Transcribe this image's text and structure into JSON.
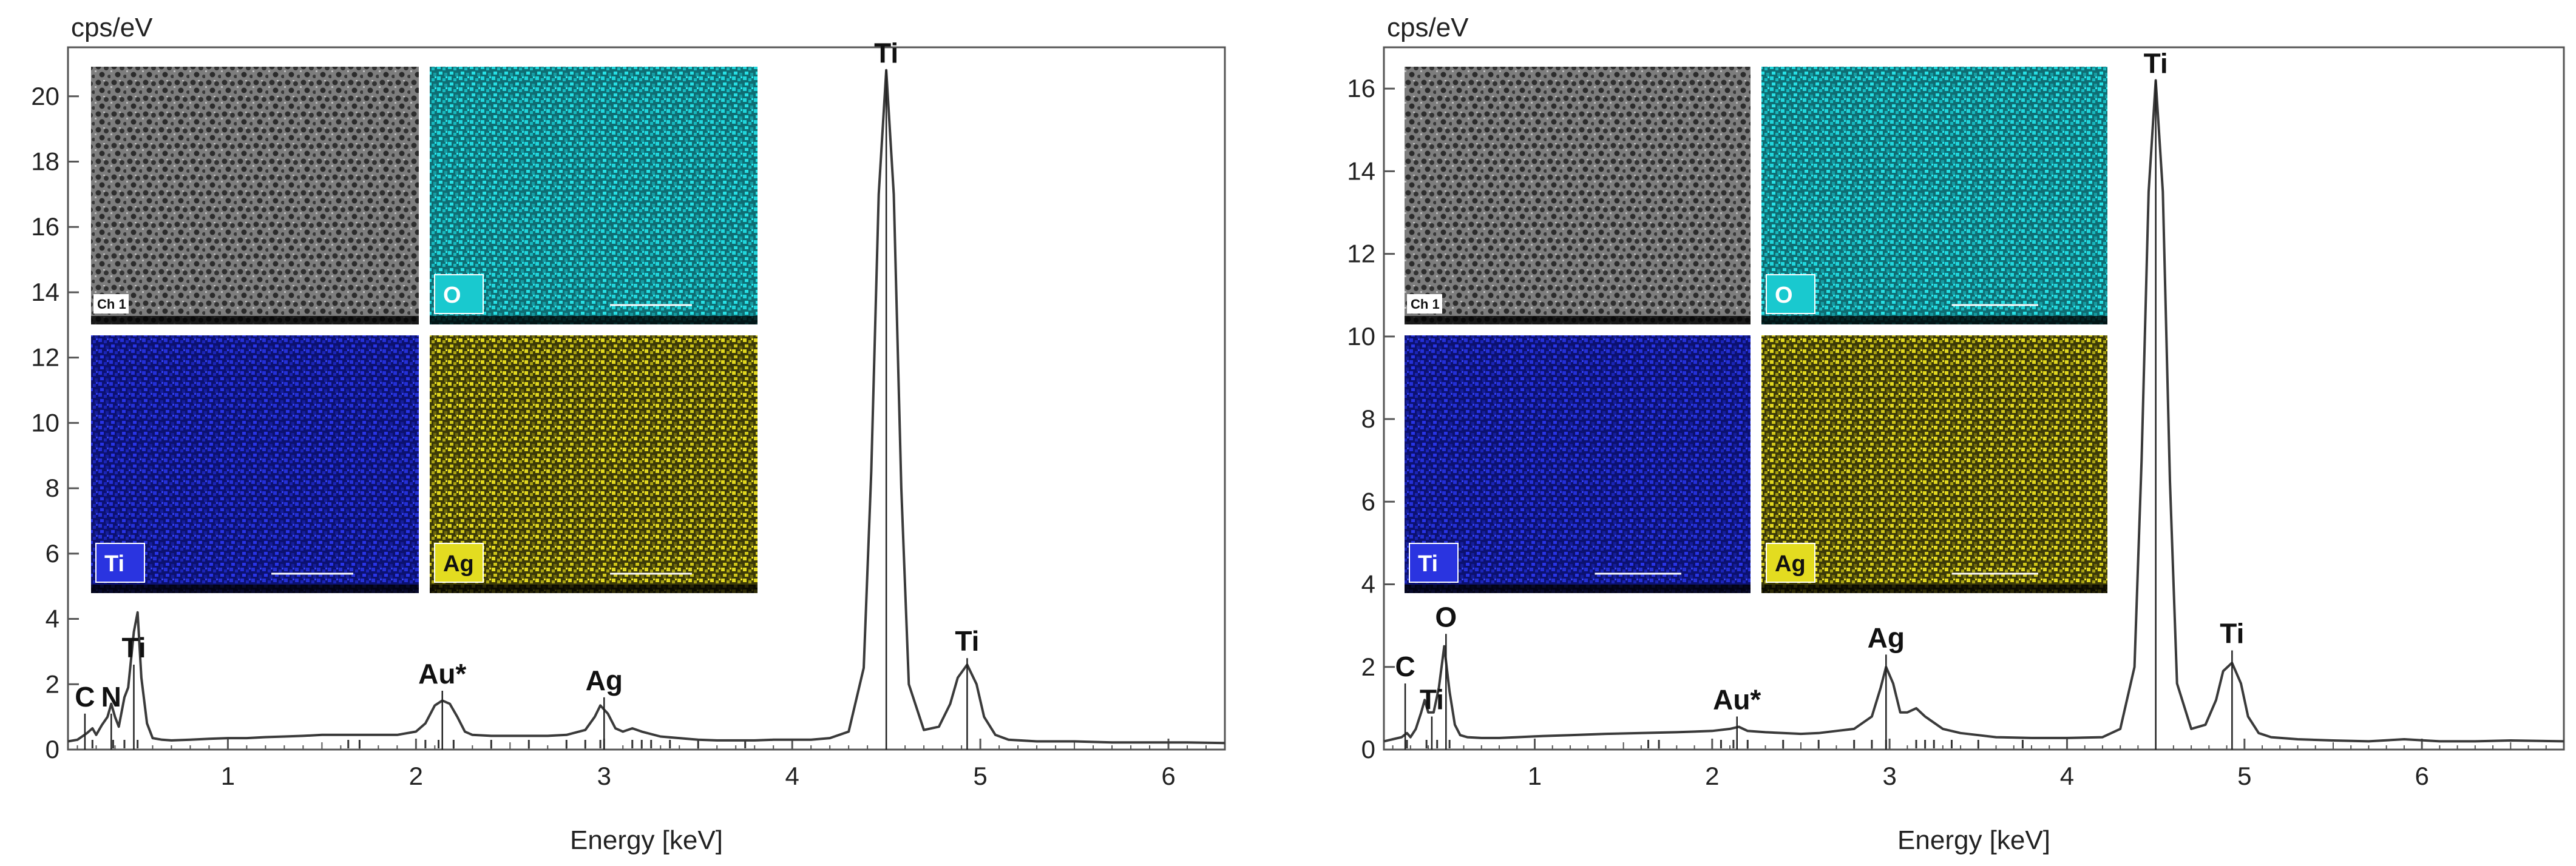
{
  "colors": {
    "spectrum": "#3a3a3a",
    "frame": "#555555",
    "sem_gray": "#8a8a8a",
    "map_O": "#19c9cf",
    "map_Ti": "#1a24c8",
    "map_Ag": "#d8d01e",
    "label_O_bg": "#19c9cf",
    "label_Ti_bg": "#2a34e0",
    "label_Ag_bg": "#e3dc20"
  },
  "chart_data": [
    {
      "type": "line",
      "ylabel": "cps/eV",
      "xlabel": "Energy [keV]",
      "xlim": [
        0.15,
        6.3
      ],
      "ylim": [
        0,
        21.5
      ],
      "xticks": [
        "1",
        "2",
        "3",
        "4",
        "5",
        "6"
      ],
      "yticks": [
        "0",
        "2",
        "4",
        "6",
        "8",
        "10",
        "12",
        "14",
        "16",
        "18",
        "20"
      ],
      "grid": false,
      "series": [
        {
          "x": [
            0.15,
            0.2,
            0.25,
            0.28,
            0.3,
            0.33,
            0.36,
            0.38,
            0.4,
            0.42,
            0.45,
            0.47,
            0.5,
            0.52,
            0.54,
            0.57,
            0.6,
            0.65,
            0.7,
            0.8,
            0.9,
            1.0,
            1.1,
            1.2,
            1.3,
            1.4,
            1.5,
            1.6,
            1.7,
            1.8,
            1.9,
            2.0,
            2.05,
            2.1,
            2.14,
            2.18,
            2.22,
            2.26,
            2.3,
            2.4,
            2.5,
            2.6,
            2.7,
            2.8,
            2.9,
            2.95,
            2.98,
            3.02,
            3.06,
            3.1,
            3.15,
            3.2,
            3.3,
            3.4,
            3.5,
            3.6,
            3.7,
            3.8,
            3.9,
            4.0,
            4.1,
            4.2,
            4.3,
            4.38,
            4.42,
            4.46,
            4.5,
            4.54,
            4.58,
            4.62,
            4.7,
            4.78,
            4.84,
            4.88,
            4.93,
            4.98,
            5.02,
            5.08,
            5.15,
            5.3,
            5.5,
            5.7,
            5.9,
            6.1,
            6.3
          ],
          "y": [
            0.25,
            0.3,
            0.5,
            0.65,
            0.45,
            0.75,
            1.0,
            1.4,
            1.0,
            0.7,
            1.6,
            1.9,
            3.6,
            4.2,
            2.2,
            0.8,
            0.35,
            0.3,
            0.28,
            0.3,
            0.33,
            0.35,
            0.35,
            0.38,
            0.4,
            0.42,
            0.45,
            0.45,
            0.45,
            0.45,
            0.45,
            0.55,
            0.8,
            1.35,
            1.5,
            1.4,
            1.0,
            0.55,
            0.45,
            0.42,
            0.42,
            0.42,
            0.42,
            0.45,
            0.6,
            1.0,
            1.35,
            1.1,
            0.65,
            0.55,
            0.65,
            0.55,
            0.4,
            0.35,
            0.3,
            0.28,
            0.28,
            0.28,
            0.3,
            0.3,
            0.3,
            0.35,
            0.55,
            2.5,
            8.5,
            17.0,
            20.8,
            17.0,
            8.0,
            2.0,
            0.6,
            0.7,
            1.4,
            2.2,
            2.6,
            2.0,
            1.0,
            0.45,
            0.3,
            0.25,
            0.25,
            0.22,
            0.22,
            0.22,
            0.2
          ]
        }
      ],
      "peak_labels": [
        {
          "text": "C",
          "x": 0.24,
          "y": 1.1
        },
        {
          "text": "N",
          "x": 0.38,
          "y": 1.1
        },
        {
          "text": "Ti",
          "x": 0.5,
          "y": 2.6
        },
        {
          "text": "Au*",
          "x": 2.14,
          "y": 1.8
        },
        {
          "text": "Ag",
          "x": 3.0,
          "y": 1.6
        },
        {
          "text": "Ti",
          "x": 4.5,
          "y": 20.8
        },
        {
          "text": "Ti",
          "x": 4.93,
          "y": 2.8
        }
      ],
      "marker_lines": [
        0.28,
        0.39,
        0.45,
        0.52,
        1.64,
        1.7,
        2.05,
        2.12,
        2.2,
        2.4,
        2.6,
        2.8,
        2.9,
        2.98,
        3.15,
        3.2,
        3.25,
        3.35,
        3.5,
        3.75
      ],
      "insets": [
        {
          "label": "Ch 1",
          "map": "sem"
        },
        {
          "label": "O",
          "map": "O"
        },
        {
          "label": "Ti",
          "map": "Ti"
        },
        {
          "label": "Ag",
          "map": "Ag"
        }
      ]
    },
    {
      "type": "line",
      "ylabel": "cps/eV",
      "xlabel": "Energy [keV]",
      "xlim": [
        0.15,
        6.8
      ],
      "ylim": [
        0,
        17
      ],
      "xticks": [
        "1",
        "2",
        "3",
        "4",
        "5",
        "6"
      ],
      "yticks": [
        "0",
        "2",
        "4",
        "6",
        "8",
        "10",
        "12",
        "14",
        "16"
      ],
      "grid": false,
      "series": [
        {
          "x": [
            0.15,
            0.2,
            0.25,
            0.28,
            0.3,
            0.33,
            0.36,
            0.38,
            0.4,
            0.43,
            0.46,
            0.49,
            0.52,
            0.55,
            0.58,
            0.62,
            0.7,
            0.8,
            0.9,
            1.0,
            1.2,
            1.4,
            1.6,
            1.8,
            2.0,
            2.1,
            2.15,
            2.2,
            2.3,
            2.4,
            2.5,
            2.6,
            2.7,
            2.8,
            2.9,
            2.95,
            2.98,
            3.02,
            3.06,
            3.1,
            3.15,
            3.2,
            3.3,
            3.4,
            3.5,
            3.6,
            3.8,
            4.0,
            4.2,
            4.3,
            4.38,
            4.42,
            4.46,
            4.5,
            4.54,
            4.58,
            4.62,
            4.7,
            4.78,
            4.84,
            4.88,
            4.93,
            4.98,
            5.02,
            5.08,
            5.15,
            5.3,
            5.5,
            5.7,
            5.9,
            6.1,
            6.3,
            6.5,
            6.8
          ],
          "y": [
            0.2,
            0.25,
            0.3,
            0.4,
            0.3,
            0.5,
            0.9,
            1.2,
            0.9,
            0.9,
            1.5,
            2.5,
            1.4,
            0.6,
            0.35,
            0.3,
            0.28,
            0.28,
            0.3,
            0.32,
            0.35,
            0.38,
            0.4,
            0.42,
            0.45,
            0.5,
            0.55,
            0.45,
            0.42,
            0.4,
            0.38,
            0.4,
            0.45,
            0.5,
            0.8,
            1.5,
            2.0,
            1.6,
            0.9,
            0.9,
            1.0,
            0.8,
            0.5,
            0.4,
            0.35,
            0.3,
            0.28,
            0.28,
            0.3,
            0.5,
            2.0,
            7.0,
            13.5,
            16.2,
            13.5,
            6.5,
            1.6,
            0.5,
            0.6,
            1.2,
            1.9,
            2.1,
            1.6,
            0.8,
            0.4,
            0.3,
            0.25,
            0.22,
            0.2,
            0.25,
            0.2,
            0.2,
            0.22,
            0.2
          ]
        }
      ],
      "peak_labels": [
        {
          "text": "C",
          "x": 0.27,
          "y": 1.6
        },
        {
          "text": "O",
          "x": 0.5,
          "y": 2.8
        },
        {
          "text": "Ti",
          "x": 0.42,
          "y": 0.8
        },
        {
          "text": "Au*",
          "x": 2.14,
          "y": 0.8
        },
        {
          "text": "Ag",
          "x": 2.98,
          "y": 2.3
        },
        {
          "text": "Ti",
          "x": 4.5,
          "y": 16.2
        },
        {
          "text": "Ti",
          "x": 4.93,
          "y": 2.4
        }
      ],
      "marker_lines": [
        0.28,
        0.39,
        0.45,
        0.52,
        1.64,
        1.7,
        2.05,
        2.12,
        2.2,
        2.4,
        2.6,
        2.8,
        2.9,
        2.98,
        3.15,
        3.2,
        3.25,
        3.35,
        3.5,
        3.75
      ],
      "insets": [
        {
          "label": "Ch 1",
          "map": "sem"
        },
        {
          "label": "O",
          "map": "O"
        },
        {
          "label": "Ti",
          "map": "Ti"
        },
        {
          "label": "Ag",
          "map": "Ag"
        }
      ]
    }
  ]
}
